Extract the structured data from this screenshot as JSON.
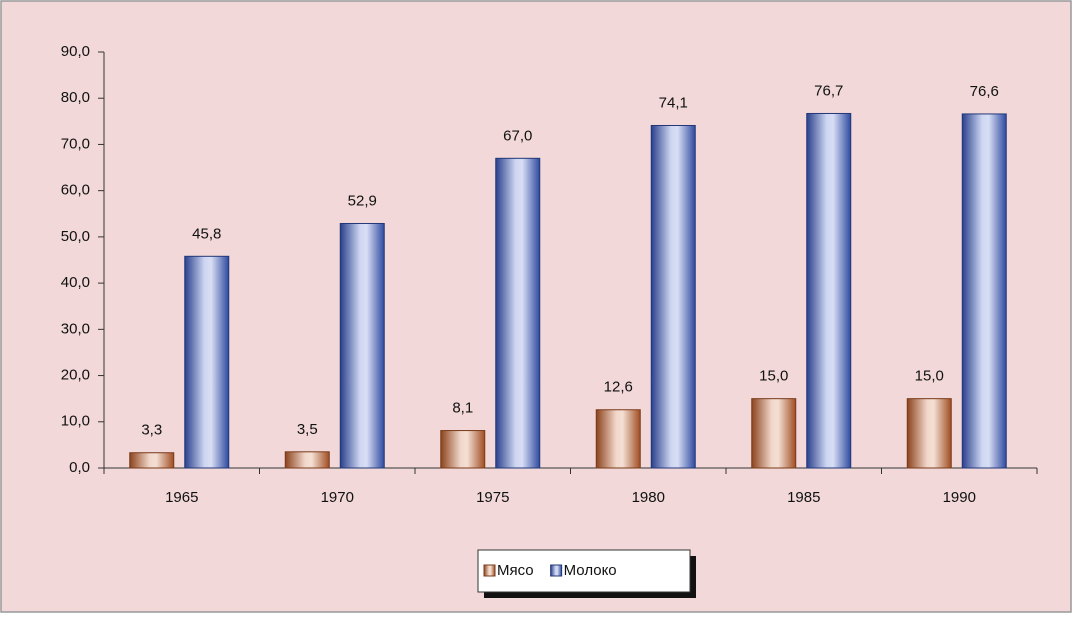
{
  "chart_data": {
    "type": "bar",
    "categories": [
      "1965",
      "1970",
      "1975",
      "1980",
      "1985",
      "1990"
    ],
    "series": [
      {
        "name": "Мясо",
        "color": "#c8602a",
        "values": [
          3.3,
          3.5,
          8.1,
          12.6,
          15.0,
          15.0
        ],
        "value_labels": [
          "3,3",
          "3,5",
          "8,1",
          "12,6",
          "15,0",
          "15,0"
        ]
      },
      {
        "name": "Молоко",
        "color": "#3a5cc8",
        "values": [
          45.8,
          52.9,
          67.0,
          74.1,
          76.7,
          76.6
        ],
        "value_labels": [
          "45,8",
          "52,9",
          "67,0",
          "74,1",
          "76,7",
          "76,6"
        ]
      }
    ],
    "ylim": [
      0,
      90
    ],
    "yticks": [
      {
        "value": 0,
        "label": "0,0"
      },
      {
        "value": 10,
        "label": "10,0"
      },
      {
        "value": 20,
        "label": "20,0"
      },
      {
        "value": 30,
        "label": "30,0"
      },
      {
        "value": 40,
        "label": "40,0"
      },
      {
        "value": 50,
        "label": "50,0"
      },
      {
        "value": 60,
        "label": "60,0"
      },
      {
        "value": 70,
        "label": "70,0"
      },
      {
        "value": 80,
        "label": "80,0"
      },
      {
        "value": 90,
        "label": "90,0"
      }
    ],
    "grid": false,
    "legend": "bottom"
  }
}
